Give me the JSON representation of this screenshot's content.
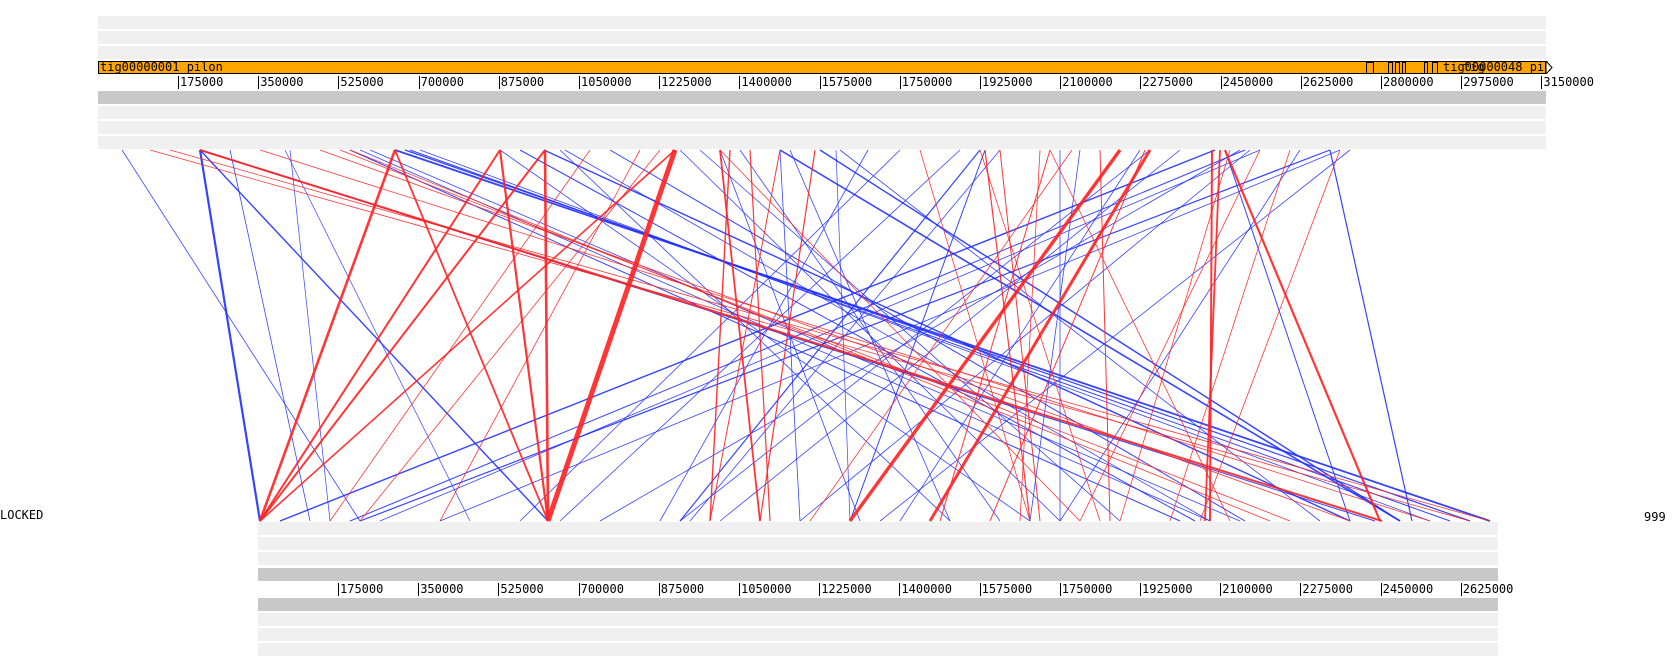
{
  "status": {
    "left": "LOCKED",
    "right": "999"
  },
  "top_track": {
    "contigs": [
      {
        "label": "tig00000001 pilon"
      },
      {
        "label": "tig00000048 pil"
      },
      {
        "label": "tig"
      }
    ],
    "tick_labels": [
      "175000",
      "350000",
      "525000",
      "700000",
      "875000",
      "1050000",
      "1225000",
      "1400000",
      "1575000",
      "1750000",
      "1925000",
      "2100000",
      "2275000",
      "2450000",
      "2625000",
      "2800000",
      "2975000",
      "3150000"
    ]
  },
  "bottom_track": {
    "tick_labels": [
      "175000",
      "350000",
      "525000",
      "700000",
      "875000",
      "1050000",
      "1225000",
      "1400000",
      "1575000",
      "1750000",
      "1925000",
      "2100000",
      "2275000",
      "2450000",
      "2625000"
    ]
  },
  "colors": {
    "contig": "#ffa500",
    "forward_link": "#ff2020",
    "reverse_link": "#2030ff",
    "lane_light": "#f0f0f0",
    "lane_grey": "#c8c8c8"
  }
}
